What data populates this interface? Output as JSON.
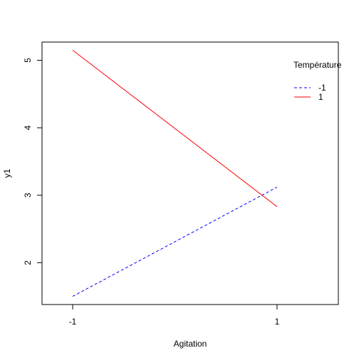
{
  "chart_data": {
    "type": "line",
    "title": "",
    "xlabel": "Agitation",
    "ylabel": "y1",
    "x_categories": [
      "-1",
      "1"
    ],
    "x_values": [
      -1,
      1
    ],
    "xlim": [
      -1.3,
      1.6
    ],
    "ylim": [
      1.38,
      5.27
    ],
    "y_ticks": [
      2,
      3,
      4,
      5
    ],
    "grid": false,
    "legend": {
      "title": "Température",
      "placement": "top-right",
      "entries": [
        "-1",
        "1"
      ]
    },
    "series": [
      {
        "name": "-1",
        "x": [
          -1,
          1
        ],
        "values": [
          1.5,
          3.12
        ],
        "color": "#0000ff",
        "dash": "dashed"
      },
      {
        "name": "1",
        "x": [
          -1,
          1
        ],
        "values": [
          5.15,
          2.83
        ],
        "color": "#ff0000",
        "dash": "solid"
      }
    ]
  }
}
